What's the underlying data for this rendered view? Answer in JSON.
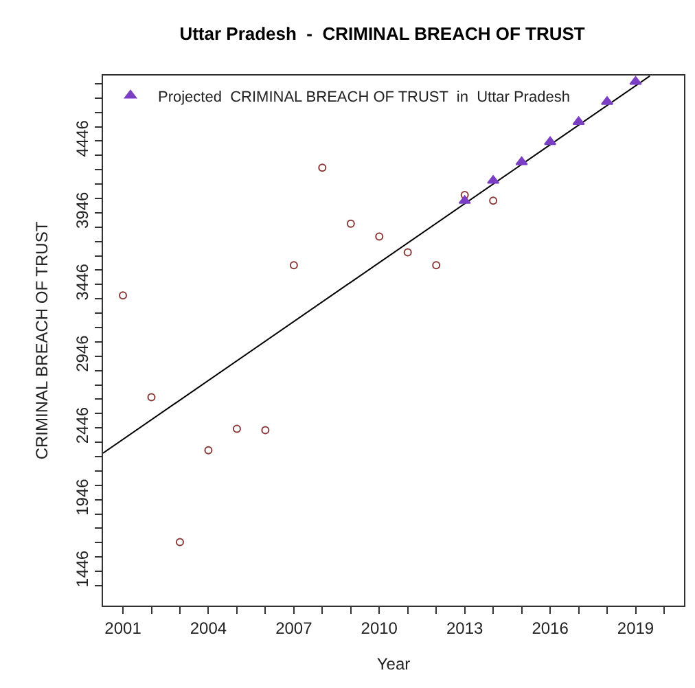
{
  "chart_data": {
    "type": "scatter",
    "title": "Uttar Pradesh  -  CRIMINAL BREACH OF TRUST",
    "xlabel": "Year",
    "ylabel": "CRIMINAL BREACH OF TRUST",
    "xlim": [
      2000.3,
      2020.7
    ],
    "ylim": [
      1207,
      4903
    ],
    "xticks": [
      {
        "value": 2001,
        "label": "2001"
      },
      {
        "value": 2002,
        "label": null
      },
      {
        "value": 2003,
        "label": null
      },
      {
        "value": 2004,
        "label": "2004"
      },
      {
        "value": 2005,
        "label": null
      },
      {
        "value": 2006,
        "label": null
      },
      {
        "value": 2007,
        "label": "2007"
      },
      {
        "value": 2008,
        "label": null
      },
      {
        "value": 2009,
        "label": null
      },
      {
        "value": 2010,
        "label": "2010"
      },
      {
        "value": 2011,
        "label": null
      },
      {
        "value": 2012,
        "label": null
      },
      {
        "value": 2013,
        "label": "2013"
      },
      {
        "value": 2014,
        "label": null
      },
      {
        "value": 2015,
        "label": null
      },
      {
        "value": 2016,
        "label": "2016"
      },
      {
        "value": 2017,
        "label": null
      },
      {
        "value": 2018,
        "label": null
      },
      {
        "value": 2019,
        "label": "2019"
      },
      {
        "value": 2020,
        "label": null
      }
    ],
    "yticks": [
      {
        "value": 1346,
        "label": null
      },
      1446,
      {
        "value": 1546,
        "label": null
      },
      {
        "value": 1646,
        "label": null
      },
      {
        "value": 1746,
        "label": null
      },
      {
        "value": 1846,
        "label": null
      },
      1946,
      {
        "value": 2046,
        "label": null
      },
      {
        "value": 2146,
        "label": null
      },
      {
        "value": 2246,
        "label": null
      },
      {
        "value": 2346,
        "label": null
      },
      2446,
      {
        "value": 2546,
        "label": null
      },
      {
        "value": 2646,
        "label": null
      },
      {
        "value": 2746,
        "label": null
      },
      {
        "value": 2846,
        "label": null
      },
      2946,
      {
        "value": 3046,
        "label": null
      },
      {
        "value": 3146,
        "label": null
      },
      {
        "value": 3246,
        "label": null
      },
      {
        "value": 3346,
        "label": null
      },
      3446,
      {
        "value": 3546,
        "label": null
      },
      {
        "value": 3646,
        "label": null
      },
      {
        "value": 3746,
        "label": null
      },
      {
        "value": 3846,
        "label": null
      },
      3946,
      {
        "value": 4046,
        "label": null
      },
      {
        "value": 4146,
        "label": null
      },
      {
        "value": 4246,
        "label": null
      },
      {
        "value": 4346,
        "label": null
      },
      4446,
      {
        "value": 4546,
        "label": null
      },
      {
        "value": 4646,
        "label": null
      },
      {
        "value": 4746,
        "label": null
      },
      {
        "value": 4846,
        "label": null
      }
    ],
    "legend": "top left",
    "series": [
      {
        "marker": "circle",
        "color": "#8b3a3a",
        "x": [
          2001,
          2002,
          2003,
          2004,
          2005,
          2006,
          2007,
          2008,
          2009,
          2010,
          2011,
          2012,
          2013,
          2014
        ],
        "values": [
          3370,
          2660,
          1650,
          2290,
          2440,
          2430,
          3580,
          4260,
          3870,
          3780,
          3670,
          3580,
          4070,
          4030
        ]
      },
      {
        "type": "line",
        "line_style": "solid",
        "color": "#000000",
        "x": [
          2000.3,
          2019.5
        ],
        "values": [
          2270,
          4900
        ]
      },
      {
        "marker": "triangle",
        "name": "Projected  CRIMINAL BREACH OF TRUST  in  Uttar Pradesh",
        "color": "#7b3fc4",
        "x": [
          2013,
          2014,
          2015,
          2016,
          2017,
          2018,
          2019
        ],
        "values": [
          4030,
          4170,
          4300,
          4440,
          4580,
          4720,
          4860
        ]
      }
    ]
  }
}
